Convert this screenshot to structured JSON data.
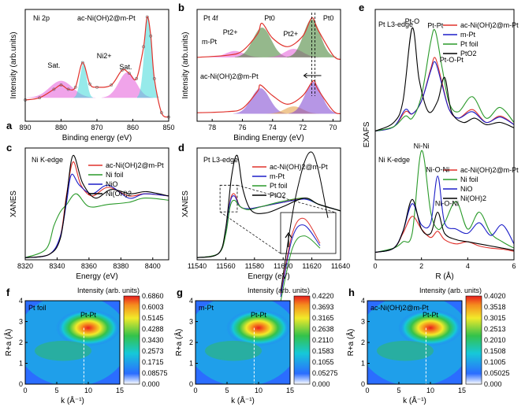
{
  "colors": {
    "red": "#e0322c",
    "blue": "#1d1fc8",
    "green": "#2a9a2a",
    "black": "#000000",
    "cyan": "#3fd8d8",
    "magenta": "#e35ad8",
    "darkgreen": "#3e7d2e",
    "purple": "#7a3fcf",
    "orange": "#e39a3a"
  },
  "chart_data": [
    {
      "id": "a",
      "type": "line",
      "panel_label": "a",
      "title": "Ni 2p",
      "series_label": "ac-Ni(OH)2@m-Pt",
      "xlabel": "Binding energy (eV)",
      "ylabel": "Intensity (arb.units)",
      "xlim": [
        890,
        850
      ],
      "xticks": [
        890,
        880,
        870,
        860,
        850
      ],
      "annotations": [
        "Sat.",
        "Ni2+",
        "Sat."
      ],
      "x": [
        890,
        886,
        882,
        880,
        878,
        876,
        874,
        872,
        870,
        866,
        863,
        861,
        859,
        857,
        856,
        855,
        854,
        852,
        850
      ],
      "y": [
        0.2,
        0.22,
        0.3,
        0.34,
        0.3,
        0.32,
        0.55,
        0.35,
        0.32,
        0.34,
        0.48,
        0.45,
        0.4,
        0.7,
        0.98,
        0.8,
        0.4,
        0.08,
        0.04
      ]
    },
    {
      "id": "b",
      "type": "line",
      "panel_label": "b",
      "title": "Pt 4f",
      "xlabel": "Binding Energy (eV)",
      "ylabel": "Intensity (arb.units)",
      "xlim": [
        79,
        69.5
      ],
      "xticks": [
        78,
        76,
        74,
        72,
        70
      ],
      "series": [
        {
          "name": "m-Pt",
          "x": [
            79,
            77,
            76,
            75,
            74.7,
            74,
            73,
            72,
            71.4,
            71,
            70,
            69.5
          ],
          "y": [
            0.6,
            0.62,
            0.66,
            0.82,
            0.92,
            0.78,
            0.7,
            0.8,
            0.97,
            0.86,
            0.62,
            0.58
          ]
        },
        {
          "name": "ac-Ni(OH)2@m-Pt",
          "x": [
            79,
            77,
            76,
            75,
            74.8,
            74,
            73,
            72,
            71.3,
            71,
            70,
            69.5
          ],
          "y": [
            0.08,
            0.09,
            0.12,
            0.28,
            0.34,
            0.24,
            0.16,
            0.24,
            0.38,
            0.3,
            0.1,
            0.07
          ]
        }
      ],
      "annotations": [
        "Pt2+",
        "Pt0",
        "Pt2+",
        "Pt0"
      ]
    },
    {
      "id": "c",
      "type": "line",
      "panel_label": "c",
      "title": "Ni K-edge",
      "xlabel": "Energy (eV)",
      "ylabel": "XANES",
      "xlim": [
        8320,
        8410
      ],
      "xticks": [
        8320,
        8340,
        8360,
        8380,
        8400
      ],
      "series": [
        {
          "name": "ac-Ni(OH)2@m-Pt",
          "x": [
            8320,
            8335,
            8342,
            8346,
            8350,
            8355,
            8362,
            8372,
            8385,
            8395,
            8410
          ],
          "y": [
            0.02,
            0.05,
            0.22,
            0.62,
            0.92,
            0.7,
            0.6,
            0.68,
            0.6,
            0.62,
            0.6
          ]
        },
        {
          "name": "Ni foil",
          "x": [
            8320,
            8333,
            8338,
            8342,
            8346,
            8352,
            8360,
            8372,
            8385,
            8395,
            8410
          ],
          "y": [
            0.02,
            0.1,
            0.32,
            0.45,
            0.52,
            0.62,
            0.5,
            0.52,
            0.54,
            0.58,
            0.56
          ]
        },
        {
          "name": "NiO",
          "x": [
            8320,
            8335,
            8342,
            8346,
            8349,
            8354,
            8362,
            8372,
            8385,
            8395,
            8410
          ],
          "y": [
            0.02,
            0.05,
            0.22,
            0.55,
            0.8,
            0.7,
            0.62,
            0.7,
            0.58,
            0.62,
            0.6
          ]
        },
        {
          "name": "Ni(OH)2",
          "x": [
            8320,
            8335,
            8342,
            8346,
            8350,
            8356,
            8364,
            8374,
            8386,
            8396,
            8410
          ],
          "y": [
            0.02,
            0.05,
            0.2,
            0.6,
            0.98,
            0.72,
            0.58,
            0.66,
            0.62,
            0.64,
            0.6
          ]
        }
      ]
    },
    {
      "id": "d",
      "type": "line",
      "panel_label": "d",
      "title": "Pt L3-edge",
      "xlabel": "Energy (eV)",
      "ylabel": "XANES",
      "xlim": [
        11540,
        11640
      ],
      "xticks": [
        11540,
        11560,
        11580,
        11600,
        11620,
        11640
      ],
      "series": [
        {
          "name": "ac-Ni(OH)2@m-Pt",
          "x": [
            11540,
            11555,
            11560,
            11563,
            11566,
            11570,
            11576,
            11585,
            11600,
            11615,
            11625,
            11640
          ],
          "y": [
            0.02,
            0.06,
            0.25,
            0.55,
            0.62,
            0.5,
            0.48,
            0.5,
            0.54,
            0.58,
            0.52,
            0.46
          ]
        },
        {
          "name": "m-Pt",
          "x": [
            11540,
            11555,
            11560,
            11563,
            11566,
            11570,
            11576,
            11585,
            11600,
            11615,
            11625,
            11640
          ],
          "y": [
            0.02,
            0.06,
            0.25,
            0.54,
            0.6,
            0.5,
            0.48,
            0.5,
            0.54,
            0.57,
            0.52,
            0.46
          ]
        },
        {
          "name": "Pt foil",
          "x": [
            11540,
            11555,
            11560,
            11563,
            11566,
            11570,
            11576,
            11585,
            11600,
            11615,
            11625,
            11640
          ],
          "y": [
            0.02,
            0.06,
            0.24,
            0.5,
            0.56,
            0.5,
            0.47,
            0.5,
            0.55,
            0.58,
            0.52,
            0.46
          ]
        },
        {
          "name": "PtO2",
          "x": [
            11540,
            11555,
            11560,
            11564,
            11568,
            11572,
            11578,
            11588,
            11600,
            11615,
            11625,
            11640
          ],
          "y": [
            0.02,
            0.06,
            0.3,
            0.78,
            0.98,
            0.66,
            0.46,
            0.44,
            0.5,
            0.58,
            0.52,
            0.46
          ]
        }
      ]
    },
    {
      "id": "e",
      "type": "line",
      "panel_label": "e",
      "xlabel": "R (Å)",
      "ylabel": "EXAFS",
      "xlim": [
        0,
        6
      ],
      "xticks": [
        0,
        2,
        4,
        6
      ],
      "title_top": "Pt L3-edge",
      "title_bottom": "Ni K-edge",
      "series_top": [
        {
          "name": "ac-Ni(OH)2@m-Pt",
          "x": [
            0,
            0.8,
            1.3,
            1.6,
            2.0,
            2.4,
            2.6,
            2.9,
            3.2,
            3.6,
            4.2,
            4.8,
            5.4,
            6
          ],
          "y": [
            0.02,
            0.06,
            0.2,
            0.18,
            0.3,
            0.6,
            0.7,
            0.46,
            0.22,
            0.14,
            0.22,
            0.1,
            0.16,
            0.08
          ]
        },
        {
          "name": "m-Pt",
          "x": [
            0,
            0.8,
            1.3,
            1.6,
            2.0,
            2.4,
            2.6,
            2.9,
            3.2,
            3.6,
            4.2,
            4.8,
            5.4,
            6
          ],
          "y": [
            0.02,
            0.06,
            0.22,
            0.18,
            0.3,
            0.58,
            0.66,
            0.44,
            0.22,
            0.14,
            0.2,
            0.1,
            0.15,
            0.08
          ]
        },
        {
          "name": "Pt foil",
          "x": [
            0,
            0.8,
            1.3,
            1.6,
            2.0,
            2.4,
            2.6,
            2.9,
            3.2,
            3.6,
            4.2,
            4.8,
            5.4,
            6
          ],
          "y": [
            0.02,
            0.06,
            0.16,
            0.14,
            0.35,
            0.85,
            0.95,
            0.6,
            0.28,
            0.2,
            0.34,
            0.14,
            0.24,
            0.1
          ]
        },
        {
          "name": "PtO2",
          "x": [
            0,
            0.8,
            1.2,
            1.6,
            1.9,
            2.3,
            2.7,
            3.0,
            3.3,
            3.8,
            4.3,
            4.8,
            5.4,
            6
          ],
          "y": [
            0.02,
            0.1,
            0.3,
            0.98,
            0.5,
            0.2,
            0.3,
            0.52,
            0.2,
            0.1,
            0.14,
            0.08,
            0.1,
            0.05
          ]
        }
      ],
      "annotations_top": [
        "Pt-O",
        "Pt-Pt",
        "Pt-O-Pt"
      ],
      "series_bottom": [
        {
          "name": "ac-Ni(OH)2@m-Pt",
          "x": [
            0,
            0.8,
            1.2,
            1.6,
            2.0,
            2.4,
            2.7,
            3.0,
            3.5,
            4.0,
            4.5,
            5.0,
            5.5,
            6
          ],
          "y": [
            0.02,
            0.06,
            0.2,
            0.36,
            0.24,
            0.16,
            0.22,
            0.14,
            0.1,
            0.12,
            0.08,
            0.06,
            0.05,
            0.03
          ]
        },
        {
          "name": "Ni foil",
          "x": [
            0,
            0.8,
            1.2,
            1.6,
            2.0,
            2.4,
            2.7,
            3.0,
            3.5,
            4.0,
            4.5,
            5.0,
            5.5,
            6
          ],
          "y": [
            0.02,
            0.06,
            0.12,
            0.2,
            0.98,
            0.4,
            0.24,
            0.3,
            0.5,
            0.24,
            0.4,
            0.2,
            0.12,
            0.06
          ]
        },
        {
          "name": "NiO",
          "x": [
            0,
            0.8,
            1.2,
            1.6,
            2.0,
            2.4,
            2.7,
            3.0,
            3.5,
            4.0,
            4.5,
            5.0,
            5.5,
            6
          ],
          "y": [
            0.02,
            0.06,
            0.22,
            0.48,
            0.28,
            0.3,
            0.74,
            0.3,
            0.24,
            0.2,
            0.3,
            0.18,
            0.28,
            0.1
          ]
        },
        {
          "name": "Ni(OH)2",
          "x": [
            0,
            0.8,
            1.2,
            1.6,
            2.0,
            2.4,
            2.7,
            3.0,
            3.5,
            4.0,
            4.5,
            5.0,
            5.5,
            6
          ],
          "y": [
            0.02,
            0.06,
            0.22,
            0.52,
            0.24,
            0.2,
            0.4,
            0.2,
            0.14,
            0.12,
            0.1,
            0.08,
            0.06,
            0.04
          ]
        }
      ],
      "annotations_bottom": [
        "Ni-Ni",
        "Ni-O-Ni",
        "Ni-O-Ni"
      ]
    },
    {
      "id": "f",
      "type": "heatmap",
      "panel_label": "f",
      "inner_label": "Pt foil",
      "peak_label": "Pt-Pt",
      "xlabel": "k (Å⁻¹)",
      "ylabel": "R+a (Å)",
      "xlim": [
        0,
        15
      ],
      "ylim": [
        0,
        4
      ],
      "xticks": [
        0,
        5,
        10,
        15
      ],
      "yticks": [
        0,
        1,
        2,
        3,
        4
      ],
      "colorbar_title": "Intensity (arb. units)",
      "colorbar_ticks": [
        "0.6860",
        "0.6003",
        "0.5145",
        "0.4288",
        "0.3430",
        "0.2573",
        "0.1715",
        "0.08575",
        "0.000"
      ],
      "peak": {
        "k": 10,
        "r": 2.7
      }
    },
    {
      "id": "g",
      "type": "heatmap",
      "panel_label": "g",
      "inner_label": "m-Pt",
      "peak_label": "Pt-Pt",
      "xlabel": "k (Å⁻¹)",
      "ylabel": "R+a (Å)",
      "xlim": [
        0,
        15
      ],
      "ylim": [
        0,
        4
      ],
      "xticks": [
        0,
        5,
        10,
        15
      ],
      "yticks": [
        0,
        1,
        2,
        3,
        4
      ],
      "colorbar_title": "Intensity (arb. units)",
      "colorbar_ticks": [
        "0.4220",
        "0.3693",
        "0.3165",
        "0.2638",
        "0.2110",
        "0.1583",
        "0.1055",
        "0.05275",
        "0.000"
      ],
      "peak": {
        "k": 10,
        "r": 2.7
      }
    },
    {
      "id": "h",
      "type": "heatmap",
      "panel_label": "h",
      "inner_label": "ac-Ni(OH)2@m-Pt",
      "peak_label": "Pt-Pt",
      "xlabel": "k (Å⁻¹)",
      "ylabel": "R+a (Å)",
      "xlim": [
        0,
        15
      ],
      "ylim": [
        0,
        4
      ],
      "xticks": [
        0,
        5,
        10,
        15
      ],
      "yticks": [
        0,
        1,
        2,
        3,
        4
      ],
      "colorbar_title": "Intensity (arb. units)",
      "colorbar_ticks": [
        "0.4020",
        "0.3518",
        "0.3015",
        "0.2513",
        "0.2010",
        "0.1508",
        "0.1005",
        "0.05025",
        "0.000"
      ],
      "peak": {
        "k": 10,
        "r": 2.7
      }
    }
  ]
}
